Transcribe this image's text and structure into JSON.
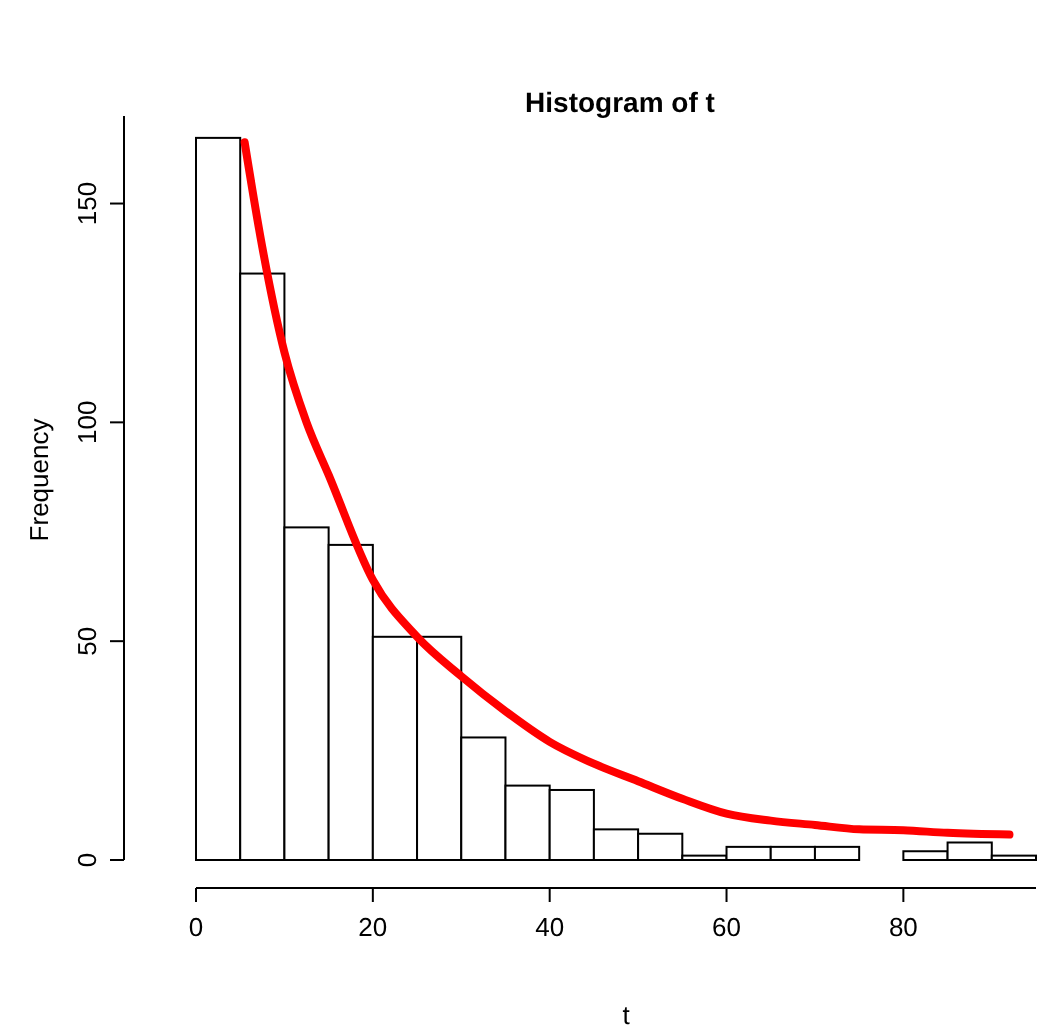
{
  "chart_data": {
    "type": "histogram",
    "title": "Histogram of t",
    "xlabel": "t",
    "ylabel": "Frequency",
    "bins": [
      0,
      5,
      10,
      15,
      20,
      25,
      30,
      35,
      40,
      45,
      50,
      55,
      60,
      65,
      70,
      75,
      80,
      85,
      90,
      95
    ],
    "values": [
      165,
      134,
      76,
      72,
      51,
      51,
      28,
      17,
      16,
      7,
      6,
      1,
      3,
      3,
      3,
      0,
      2,
      4,
      1
    ],
    "color": "#ffffff",
    "series": [
      {
        "type": "line",
        "color": "#ff0000",
        "x": [
          5.5,
          7.5,
          10,
          12.5,
          15,
          20,
          25,
          30,
          35,
          40,
          45,
          50,
          55,
          60,
          65,
          70,
          75,
          80,
          85,
          92
        ],
        "values": [
          164,
          140,
          116,
          100,
          88,
          64,
          51,
          42,
          34,
          27,
          22,
          18,
          14,
          10.6,
          9,
          8,
          7,
          6.8,
          6.2,
          5.8
        ]
      }
    ],
    "xlim": [
      0,
      95
    ],
    "ylim": [
      0,
      170
    ],
    "xticks": [
      0,
      20,
      40,
      60,
      80
    ],
    "yticks": [
      0,
      50,
      100,
      150
    ],
    "grid": false
  }
}
